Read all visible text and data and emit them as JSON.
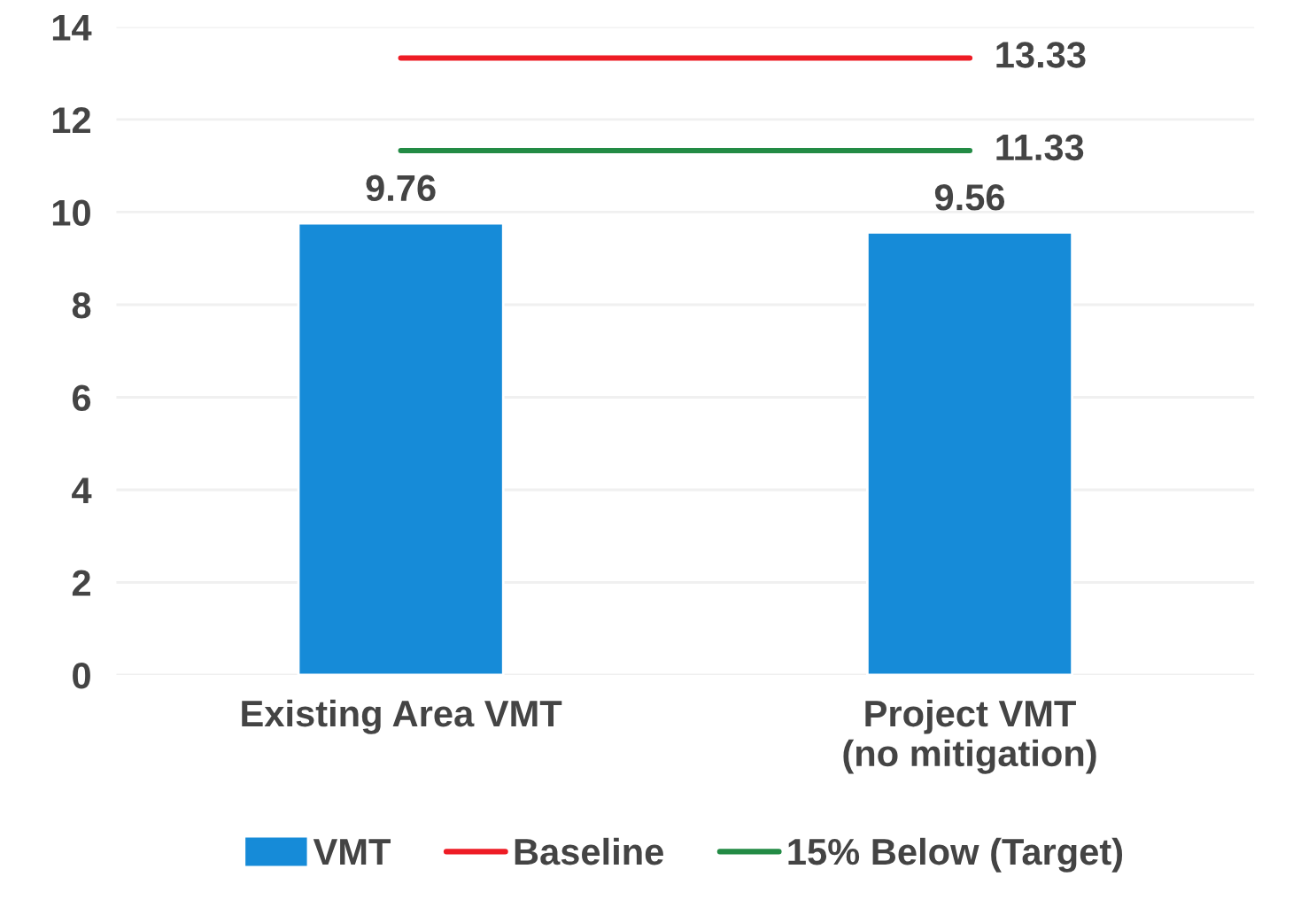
{
  "chart_data": {
    "type": "bar",
    "categories": [
      "Existing Area VMT",
      "Project VMT\n(no mitigation)"
    ],
    "series": [
      {
        "name": "VMT",
        "color": "#168bd8",
        "values": [
          9.76,
          9.56
        ],
        "value_labels": [
          "9.76",
          "9.56"
        ]
      },
      {
        "name": "Baseline",
        "type": "line",
        "color": "#ee1c25",
        "values": [
          13.33,
          13.33
        ],
        "value_labels": [
          null,
          "13.33"
        ]
      },
      {
        "name": "15% Below (Target)",
        "type": "line",
        "color": "#238b45",
        "values": [
          11.33,
          11.33
        ],
        "value_labels": [
          null,
          "11.33"
        ]
      }
    ],
    "ylim": [
      0,
      14
    ],
    "yticks": [
      0,
      2,
      4,
      6,
      8,
      10,
      12,
      14
    ],
    "grid": "y",
    "legend": "bottom",
    "marker": "none",
    "line_style": "solid"
  }
}
